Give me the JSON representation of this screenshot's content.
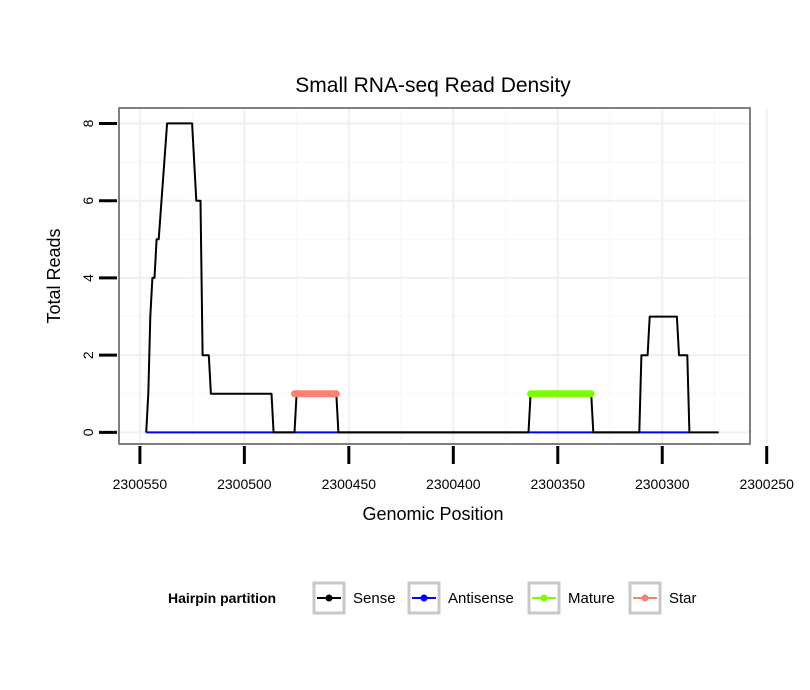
{
  "chart_data": {
    "type": "line",
    "title": "Small RNA-seq Read Density",
    "xlabel": "Genomic Position",
    "ylabel": "Total Reads",
    "x_reversed": true,
    "xlim": [
      2300560,
      2300258
    ],
    "ylim": [
      -0.3,
      8.4
    ],
    "x_ticks": [
      2300550,
      2300500,
      2300450,
      2300400,
      2300350,
      2300300,
      2300250
    ],
    "x_tick_labels": [
      "2300550",
      "2300500",
      "2300450",
      "2300400",
      "2300350",
      "2300300",
      "2300250"
    ],
    "y_ticks": [
      0,
      2,
      4,
      6,
      8
    ],
    "y_tick_labels": [
      "0",
      "2",
      "4",
      "6",
      "8"
    ],
    "grid": true,
    "legend": {
      "title": "Hairpin partition",
      "position": "bottom",
      "entries": [
        "Sense",
        "Antisense",
        "Mature",
        "Star"
      ]
    },
    "series": [
      {
        "name": "Sense",
        "color": "#000000",
        "x": [
          2300547,
          2300546,
          2300545,
          2300544,
          2300543,
          2300542,
          2300541,
          2300537,
          2300525,
          2300523,
          2300522,
          2300521,
          2300520,
          2300518,
          2300517,
          2300516,
          2300500,
          2300495,
          2300487,
          2300486,
          2300480,
          2300476,
          2300475,
          2300466,
          2300456,
          2300455,
          2300432,
          2300431,
          2300390,
          2300364,
          2300363,
          2300334,
          2300333,
          2300312,
          2300311,
          2300310,
          2300307,
          2300306,
          2300293,
          2300292,
          2300291,
          2300288,
          2300287,
          2300280,
          2300273
        ],
        "y": [
          0,
          1,
          3,
          4,
          4,
          5,
          5,
          8,
          8,
          6,
          6,
          6,
          2,
          2,
          2,
          1,
          1,
          1,
          1,
          0,
          0,
          0,
          1,
          1,
          1,
          0,
          0,
          0,
          0,
          0,
          1,
          1,
          0,
          0,
          0,
          2,
          2,
          3,
          3,
          2,
          2,
          2,
          0,
          0,
          0
        ]
      },
      {
        "name": "Antisense",
        "color": "#0000ff",
        "x": [
          2300547,
          2300287
        ],
        "y": [
          0,
          0
        ]
      },
      {
        "name": "Mature",
        "color": "#7cfc00",
        "x": [
          2300363,
          2300334
        ],
        "y": [
          1,
          1
        ]
      },
      {
        "name": "Star",
        "color": "#fa8072",
        "x": [
          2300476,
          2300456
        ],
        "y": [
          1,
          1
        ]
      }
    ]
  }
}
